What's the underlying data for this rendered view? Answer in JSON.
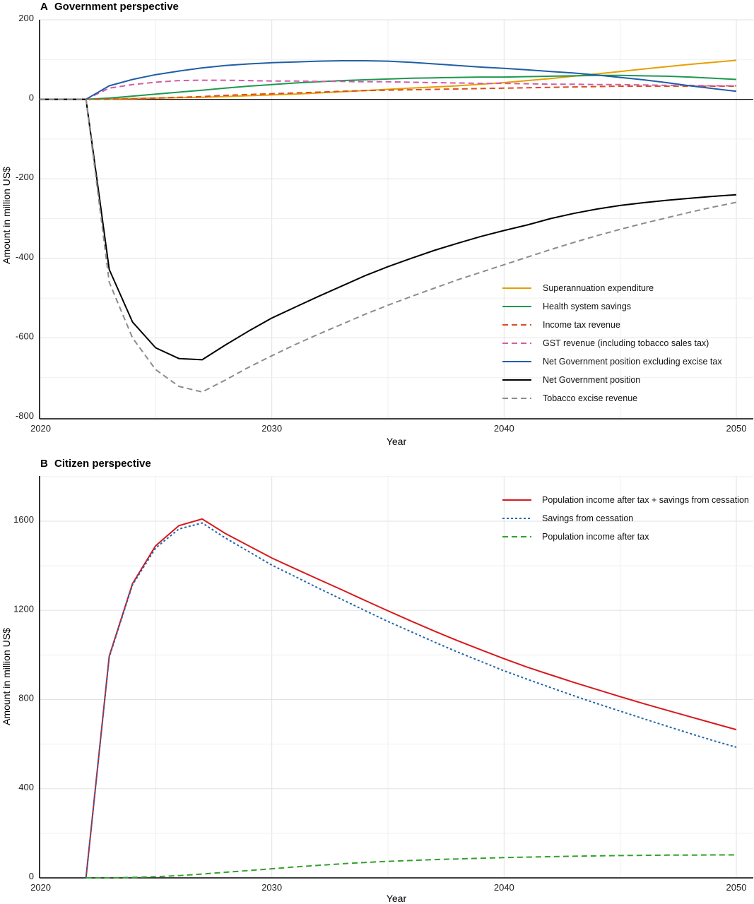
{
  "chart_data": [
    {
      "panel_label": "A",
      "title": "Government perspective",
      "type": "line",
      "xlabel": "Year",
      "ylabel": "Amount in million US$",
      "xlim": [
        2020,
        2050
      ],
      "ylim": [
        -800,
        200
      ],
      "xticks": [
        2020,
        2030,
        2040,
        2050
      ],
      "yticks": [
        200,
        0,
        -200,
        -400,
        -600,
        -800
      ],
      "grid": true,
      "legend_position": "bottom-right",
      "x": [
        2020,
        2021,
        2022,
        2023,
        2024,
        2025,
        2026,
        2027,
        2028,
        2029,
        2030,
        2031,
        2032,
        2033,
        2034,
        2035,
        2036,
        2037,
        2038,
        2039,
        2040,
        2041,
        2042,
        2043,
        2044,
        2045,
        2046,
        2047,
        2048,
        2049,
        2050
      ],
      "series": [
        {
          "name": "Superannuation expenditure",
          "color": "#E69F00",
          "dash": "solid",
          "values": [
            0,
            0,
            0,
            1,
            2,
            3,
            4,
            5,
            7,
            9,
            11,
            13,
            16,
            19,
            22,
            25,
            28,
            31,
            34,
            38,
            42,
            47,
            52,
            58,
            64,
            70,
            76,
            82,
            88,
            93,
            98
          ]
        },
        {
          "name": "Health system savings",
          "color": "#1E9850",
          "dash": "solid",
          "values": [
            0,
            0,
            0,
            3,
            8,
            13,
            18,
            23,
            28,
            33,
            37,
            41,
            44,
            47,
            49,
            51,
            53,
            54,
            55,
            56,
            56,
            57,
            58,
            59,
            60,
            60,
            59,
            58,
            56,
            53,
            50
          ]
        },
        {
          "name": "Income tax revenue",
          "color": "#D94E1F",
          "dash": "dashed",
          "values": [
            0,
            0,
            0,
            0,
            1,
            3,
            5,
            7,
            10,
            12,
            14,
            16,
            18,
            20,
            22,
            23,
            24,
            25,
            26,
            27,
            28,
            29,
            30,
            31,
            32,
            33,
            33,
            33,
            33,
            33,
            33
          ]
        },
        {
          "name": "GST revenue (including tobacco sales tax)",
          "color": "#D45BA7",
          "dash": "dashed",
          "values": [
            0,
            0,
            0,
            28,
            37,
            43,
            47,
            48,
            48,
            47,
            46,
            46,
            45,
            45,
            44,
            44,
            43,
            42,
            41,
            40,
            40,
            39,
            38,
            38,
            37,
            37,
            36,
            35,
            35,
            34,
            34
          ]
        },
        {
          "name": "Net Government position excluding excise tax",
          "color": "#1F5FA6",
          "dash": "solid",
          "values": [
            0,
            0,
            0,
            34,
            50,
            62,
            71,
            79,
            85,
            89,
            92,
            94,
            96,
            97,
            97,
            96,
            93,
            89,
            85,
            81,
            78,
            74,
            70,
            66,
            61,
            55,
            49,
            42,
            34,
            27,
            20
          ]
        },
        {
          "name": "Net Government position",
          "color": "#000000",
          "dash": "solid",
          "values": [
            0,
            0,
            0,
            -428,
            -560,
            -625,
            -652,
            -655,
            -618,
            -583,
            -550,
            -523,
            -496,
            -470,
            -444,
            -421,
            -400,
            -380,
            -362,
            -345,
            -330,
            -316,
            -300,
            -287,
            -276,
            -267,
            -260,
            -254,
            -249,
            -244,
            -240
          ]
        },
        {
          "name": "Tobacco excise revenue",
          "color": "#8C8C8C",
          "dash": "dashed",
          "values": [
            0,
            0,
            0,
            -460,
            -600,
            -680,
            -722,
            -736,
            -706,
            -674,
            -645,
            -617,
            -591,
            -566,
            -541,
            -518,
            -496,
            -475,
            -454,
            -435,
            -416,
            -397,
            -378,
            -360,
            -343,
            -327,
            -312,
            -298,
            -284,
            -271,
            -259
          ]
        }
      ]
    },
    {
      "panel_label": "B",
      "title": "Citizen perspective",
      "type": "line",
      "xlabel": "Year",
      "ylabel": "Amount in million US$",
      "xlim": [
        2020,
        2050
      ],
      "ylim": [
        0,
        1800
      ],
      "xticks": [
        2020,
        2030,
        2040,
        2050
      ],
      "yticks": [
        1600,
        1200,
        800,
        400,
        0
      ],
      "grid": true,
      "legend_position": "top-right",
      "x": [
        2020,
        2021,
        2022,
        2023,
        2024,
        2025,
        2026,
        2027,
        2028,
        2029,
        2030,
        2031,
        2032,
        2033,
        2034,
        2035,
        2036,
        2037,
        2038,
        2039,
        2040,
        2041,
        2042,
        2043,
        2044,
        2045,
        2046,
        2047,
        2048,
        2049,
        2050
      ],
      "series": [
        {
          "name": "Population income after tax + savings from cessation",
          "color": "#D7191C",
          "dash": "solid",
          "values": [
            null,
            null,
            0,
            995,
            1320,
            1490,
            1580,
            1610,
            1545,
            1490,
            1435,
            1387,
            1340,
            1293,
            1245,
            1198,
            1152,
            1107,
            1064,
            1023,
            983,
            945,
            911,
            877,
            845,
            813,
            782,
            752,
            723,
            694,
            665
          ]
        },
        {
          "name": "Savings from cessation",
          "color": "#2166AC",
          "dash": "dotted",
          "values": [
            null,
            null,
            0,
            990,
            1315,
            1480,
            1565,
            1592,
            1525,
            1464,
            1403,
            1352,
            1300,
            1250,
            1200,
            1150,
            1104,
            1058,
            1013,
            971,
            929,
            891,
            854,
            817,
            782,
            748,
            714,
            681,
            648,
            616,
            586
          ]
        },
        {
          "name": "Population income after tax",
          "color": "#33A02C",
          "dash": "dashed",
          "values": [
            null,
            null,
            0,
            0,
            2,
            5,
            10,
            17,
            25,
            33,
            41,
            49,
            56,
            63,
            69,
            74,
            78,
            82,
            85,
            88,
            91,
            93,
            95,
            97,
            99,
            100,
            101,
            102,
            102,
            103,
            103
          ]
        }
      ]
    }
  ]
}
